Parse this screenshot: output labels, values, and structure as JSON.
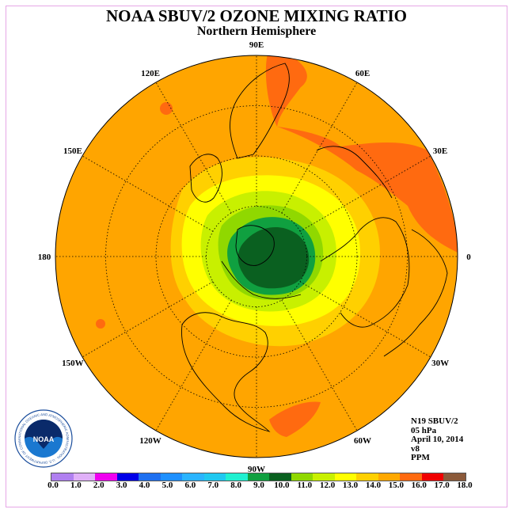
{
  "title": "NOAA SBUV/2 OZONE MIXING RATIO",
  "subtitle": "Northern Hemisphere",
  "longitude_labels": [
    {
      "text": "90E",
      "deg": 90
    },
    {
      "text": "60E",
      "deg": 60
    },
    {
      "text": "30E",
      "deg": 30
    },
    {
      "text": "0",
      "deg": 0
    },
    {
      "text": "30W",
      "deg": -30
    },
    {
      "text": "60W",
      "deg": -60
    },
    {
      "text": "90W",
      "deg": -90
    },
    {
      "text": "120W",
      "deg": -120
    },
    {
      "text": "150W",
      "deg": -150
    },
    {
      "text": "180",
      "deg": 180
    },
    {
      "text": "150E",
      "deg": 150
    },
    {
      "text": "120E",
      "deg": 120
    }
  ],
  "meta": {
    "satellite": "N19 SBUV/2",
    "level": "05 hPa",
    "date": "April 10, 2014",
    "version": "v8",
    "units": "PPM"
  },
  "colorbar": {
    "ticks": [
      "0.0",
      "1.0",
      "2.0",
      "3.0",
      "4.0",
      "5.0",
      "6.0",
      "7.0",
      "8.0",
      "9.0",
      "10.0",
      "11.0",
      "12.0",
      "13.0",
      "14.0",
      "15.0",
      "16.0",
      "17.0",
      "18.0"
    ],
    "colors": [
      "#b080f0",
      "#e0b0f8",
      "#f000f0",
      "#0000e8",
      "#1e70f0",
      "#1e90ff",
      "#2ab4ff",
      "#20c8f0",
      "#20f0d0",
      "#10a040",
      "#0a6020",
      "#90d800",
      "#c8f000",
      "#ffff00",
      "#ffd000",
      "#ffa800",
      "#ff6a10",
      "#f00000",
      "#8b5a3a"
    ]
  },
  "logo": {
    "text": "NOAA",
    "ring_text": "NATIONAL OCEANIC AND ATMOSPHERIC ADMINISTRATION · U.S. DEPARTMENT OF COMMERCE"
  }
}
